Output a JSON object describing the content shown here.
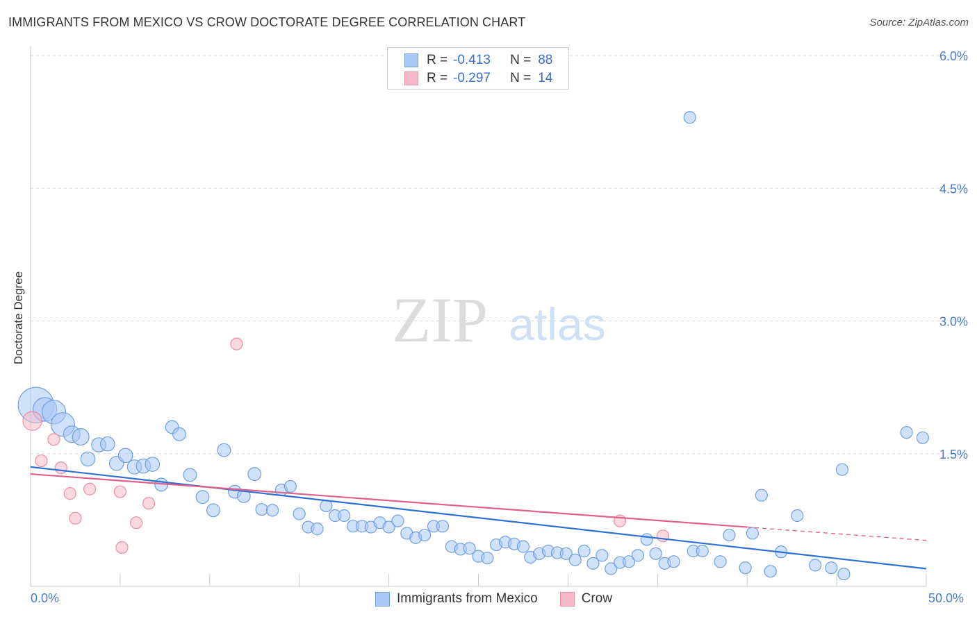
{
  "header": {
    "title": "IMMIGRANTS FROM MEXICO VS CROW DOCTORATE DEGREE CORRELATION CHART",
    "source": "Source: ZipAtlas.com"
  },
  "watermark": {
    "zip": "ZIP",
    "atlas": "atlas"
  },
  "legend": {
    "rows": [
      {
        "r_label": "R =",
        "r_value": "-0.413",
        "n_label": "N =",
        "n_value": "88",
        "color": "#a9c8f5"
      },
      {
        "r_label": "R =",
        "r_value": "-0.297",
        "n_label": "N =",
        "n_value": "14",
        "color": "#f7b9c9"
      }
    ]
  },
  "bottom_legend": [
    {
      "label": "Immigrants from Mexico",
      "color": "#a9c8f5"
    },
    {
      "label": "Crow",
      "color": "#f7b9c9"
    }
  ],
  "x_tick_labels": {
    "left": "0.0%",
    "right": "50.0%"
  },
  "colors": {
    "blue_fill": "#a9c8f5",
    "blue_stroke": "#6f9fe0",
    "blue_line": "#2f6fd1",
    "pink_fill": "#f7b9c9",
    "pink_stroke": "#ee8ca6",
    "pink_line": "#e0608a",
    "tick_text": "#4a7cc9",
    "grid": "#d9d9d9"
  },
  "chart_data": {
    "type": "scatter",
    "title": "IMMIGRANTS FROM MEXICO VS CROW DOCTORATE DEGREE CORRELATION CHART",
    "xlabel": "",
    "ylabel": "Doctorate Degree",
    "xlim": [
      0,
      50
    ],
    "ylim": [
      0,
      6.0
    ],
    "y_ticks": [
      1.5,
      3.0,
      4.5,
      6.0
    ],
    "y_tick_labels": [
      "1.5%",
      "3.0%",
      "4.5%",
      "6.0%"
    ],
    "x_tick_labels": [
      "0.0%",
      "50.0%"
    ],
    "grid": true,
    "series": [
      {
        "name": "Immigrants from Mexico",
        "R": -0.413,
        "N": 88,
        "trend": {
          "x": [
            0,
            50
          ],
          "y": [
            1.35,
            0.2
          ]
        },
        "points": [
          {
            "x": 0.3,
            "y": 2.05,
            "s": 3
          },
          {
            "x": 0.8,
            "y": 2.0,
            "s": 2
          },
          {
            "x": 1.3,
            "y": 1.97,
            "s": 2
          },
          {
            "x": 1.8,
            "y": 1.83,
            "s": 2
          },
          {
            "x": 2.3,
            "y": 1.72,
            "s": 1.4
          },
          {
            "x": 2.8,
            "y": 1.69,
            "s": 1.4
          },
          {
            "x": 3.2,
            "y": 1.44,
            "s": 1.2
          },
          {
            "x": 3.8,
            "y": 1.6,
            "s": 1.2
          },
          {
            "x": 4.3,
            "y": 1.61,
            "s": 1.2
          },
          {
            "x": 4.8,
            "y": 1.39,
            "s": 1.2
          },
          {
            "x": 5.3,
            "y": 1.48,
            "s": 1.2
          },
          {
            "x": 5.8,
            "y": 1.35,
            "s": 1.2
          },
          {
            "x": 6.3,
            "y": 1.36,
            "s": 1.2
          },
          {
            "x": 6.8,
            "y": 1.38,
            "s": 1.2
          },
          {
            "x": 7.3,
            "y": 1.15,
            "s": 1.1
          },
          {
            "x": 7.9,
            "y": 1.8,
            "s": 1.1
          },
          {
            "x": 8.3,
            "y": 1.72,
            "s": 1.1
          },
          {
            "x": 8.9,
            "y": 1.26,
            "s": 1.1
          },
          {
            "x": 9.6,
            "y": 1.01,
            "s": 1.1
          },
          {
            "x": 10.2,
            "y": 0.86,
            "s": 1.1
          },
          {
            "x": 10.8,
            "y": 1.54,
            "s": 1.1
          },
          {
            "x": 11.4,
            "y": 1.07,
            "s": 1.1
          },
          {
            "x": 11.9,
            "y": 1.02,
            "s": 1.1
          },
          {
            "x": 12.5,
            "y": 1.27,
            "s": 1.1
          },
          {
            "x": 12.9,
            "y": 0.87,
            "s": 1.0
          },
          {
            "x": 13.5,
            "y": 0.86,
            "s": 1.0
          },
          {
            "x": 14.0,
            "y": 1.09,
            "s": 1.0
          },
          {
            "x": 14.5,
            "y": 1.13,
            "s": 1.0
          },
          {
            "x": 15.0,
            "y": 0.82,
            "s": 1.0
          },
          {
            "x": 15.5,
            "y": 0.67,
            "s": 1.0
          },
          {
            "x": 16.0,
            "y": 0.65,
            "s": 1.0
          },
          {
            "x": 16.5,
            "y": 0.91,
            "s": 1.0
          },
          {
            "x": 17.0,
            "y": 0.8,
            "s": 1.0
          },
          {
            "x": 17.5,
            "y": 0.8,
            "s": 1.0
          },
          {
            "x": 18.0,
            "y": 0.68,
            "s": 1.0
          },
          {
            "x": 18.5,
            "y": 0.68,
            "s": 1.0
          },
          {
            "x": 19.0,
            "y": 0.67,
            "s": 1.0
          },
          {
            "x": 19.5,
            "y": 0.72,
            "s": 1.0
          },
          {
            "x": 20.0,
            "y": 0.67,
            "s": 1.0
          },
          {
            "x": 20.5,
            "y": 0.74,
            "s": 1.0
          },
          {
            "x": 21.0,
            "y": 0.6,
            "s": 1.0
          },
          {
            "x": 21.5,
            "y": 0.55,
            "s": 1.0
          },
          {
            "x": 22.0,
            "y": 0.58,
            "s": 1.0
          },
          {
            "x": 22.5,
            "y": 0.68,
            "s": 1.0
          },
          {
            "x": 23.0,
            "y": 0.68,
            "s": 1.0
          },
          {
            "x": 23.5,
            "y": 0.45,
            "s": 1.0
          },
          {
            "x": 24.0,
            "y": 0.42,
            "s": 1.0
          },
          {
            "x": 24.5,
            "y": 0.43,
            "s": 1.0
          },
          {
            "x": 25.0,
            "y": 0.34,
            "s": 1.0
          },
          {
            "x": 25.5,
            "y": 0.32,
            "s": 1.0
          },
          {
            "x": 26.0,
            "y": 0.47,
            "s": 1.0
          },
          {
            "x": 26.5,
            "y": 0.5,
            "s": 1.0
          },
          {
            "x": 27.0,
            "y": 0.48,
            "s": 1.0
          },
          {
            "x": 27.5,
            "y": 0.45,
            "s": 1.0
          },
          {
            "x": 27.9,
            "y": 0.33,
            "s": 1.0
          },
          {
            "x": 28.4,
            "y": 0.37,
            "s": 1.0
          },
          {
            "x": 28.9,
            "y": 0.4,
            "s": 1.0
          },
          {
            "x": 29.4,
            "y": 0.38,
            "s": 1.0
          },
          {
            "x": 29.9,
            "y": 0.37,
            "s": 1.0
          },
          {
            "x": 30.4,
            "y": 0.3,
            "s": 1.0
          },
          {
            "x": 30.9,
            "y": 0.4,
            "s": 1.0
          },
          {
            "x": 31.4,
            "y": 0.26,
            "s": 1.0
          },
          {
            "x": 31.9,
            "y": 0.35,
            "s": 1.0
          },
          {
            "x": 32.4,
            "y": 0.2,
            "s": 1.0
          },
          {
            "x": 32.9,
            "y": 0.27,
            "s": 1.0
          },
          {
            "x": 33.4,
            "y": 0.28,
            "s": 1.0
          },
          {
            "x": 33.9,
            "y": 0.35,
            "s": 1.0
          },
          {
            "x": 34.4,
            "y": 0.53,
            "s": 1.0
          },
          {
            "x": 34.9,
            "y": 0.37,
            "s": 1.0
          },
          {
            "x": 35.4,
            "y": 0.26,
            "s": 1.0
          },
          {
            "x": 35.9,
            "y": 0.28,
            "s": 1.0
          },
          {
            "x": 36.8,
            "y": 5.3,
            "s": 1.0
          },
          {
            "x": 37.0,
            "y": 0.4,
            "s": 1.0
          },
          {
            "x": 37.5,
            "y": 0.4,
            "s": 1.0
          },
          {
            "x": 38.5,
            "y": 0.28,
            "s": 1.0
          },
          {
            "x": 39.0,
            "y": 0.58,
            "s": 1.0
          },
          {
            "x": 39.9,
            "y": 0.21,
            "s": 1.0
          },
          {
            "x": 40.3,
            "y": 0.6,
            "s": 1.0
          },
          {
            "x": 40.8,
            "y": 1.03,
            "s": 1.0
          },
          {
            "x": 41.3,
            "y": 0.17,
            "s": 1.0
          },
          {
            "x": 41.9,
            "y": 0.39,
            "s": 1.0
          },
          {
            "x": 42.8,
            "y": 0.8,
            "s": 1.0
          },
          {
            "x": 43.8,
            "y": 0.24,
            "s": 1.0
          },
          {
            "x": 44.7,
            "y": 0.21,
            "s": 1.0
          },
          {
            "x": 45.3,
            "y": 1.32,
            "s": 1.0
          },
          {
            "x": 45.4,
            "y": 0.14,
            "s": 1.0
          },
          {
            "x": 48.9,
            "y": 1.74,
            "s": 1.0
          },
          {
            "x": 49.8,
            "y": 1.68,
            "s": 1.0
          }
        ]
      },
      {
        "name": "Crow",
        "R": -0.297,
        "N": 14,
        "trend": {
          "x": [
            0,
            40.0
          ],
          "y": [
            1.27,
            0.67
          ]
        },
        "trend_dashed": {
          "x": [
            40.0,
            50
          ],
          "y": [
            0.67,
            0.52
          ]
        },
        "points": [
          {
            "x": 0.1,
            "y": 1.87,
            "s": 1.6
          },
          {
            "x": 0.6,
            "y": 1.42,
            "s": 1.0
          },
          {
            "x": 1.3,
            "y": 1.66,
            "s": 1.0
          },
          {
            "x": 1.7,
            "y": 1.34,
            "s": 1.0
          },
          {
            "x": 2.2,
            "y": 1.05,
            "s": 1.0
          },
          {
            "x": 2.5,
            "y": 0.77,
            "s": 1.0
          },
          {
            "x": 3.3,
            "y": 1.1,
            "s": 1.0
          },
          {
            "x": 5.0,
            "y": 1.07,
            "s": 1.0
          },
          {
            "x": 5.1,
            "y": 0.44,
            "s": 1.0
          },
          {
            "x": 5.9,
            "y": 0.72,
            "s": 1.0
          },
          {
            "x": 6.6,
            "y": 0.94,
            "s": 1.0
          },
          {
            "x": 11.5,
            "y": 2.74,
            "s": 1.0
          },
          {
            "x": 32.9,
            "y": 0.74,
            "s": 1.0
          },
          {
            "x": 35.3,
            "y": 0.57,
            "s": 1.0
          }
        ]
      }
    ]
  }
}
